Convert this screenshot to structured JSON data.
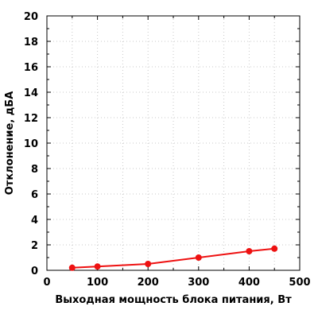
{
  "chart_data": {
    "type": "line",
    "xlabel": "Выходная мощность блока питания, Вт",
    "ylabel": "Отклонение, дБА",
    "xlim": [
      0,
      500
    ],
    "ylim": [
      0,
      20
    ],
    "x_ticks": [
      "0",
      "100",
      "200",
      "300",
      "400",
      "500"
    ],
    "y_ticks": [
      "0",
      "2",
      "4",
      "6",
      "8",
      "10",
      "12",
      "14",
      "16",
      "18",
      "20"
    ],
    "grid": true,
    "series": [
      {
        "color": "#ee1111",
        "x": [
          50,
          100,
          200,
          300,
          400,
          450
        ],
        "y": [
          0.2,
          0.3,
          0.5,
          1.0,
          1.5,
          1.7
        ]
      }
    ]
  }
}
